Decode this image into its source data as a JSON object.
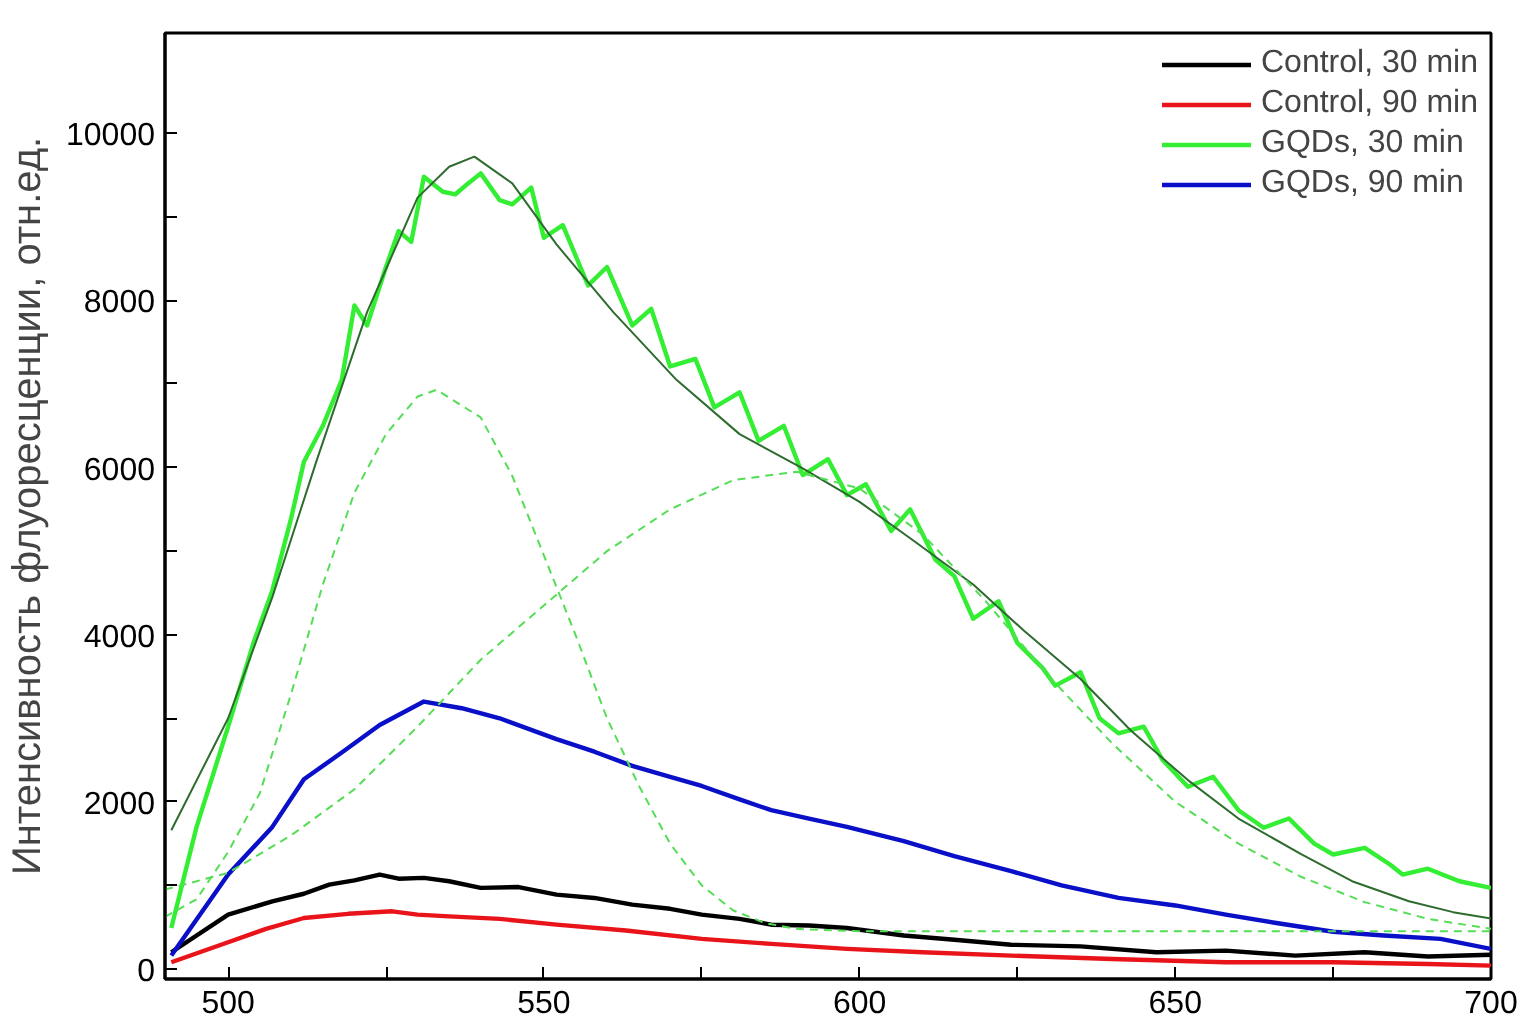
{
  "chart_data": {
    "type": "line",
    "ylabel": "Интенсивность флуоресценции, отн.ед.",
    "xlim": [
      490,
      700
    ],
    "ylim": [
      -120,
      11200
    ],
    "xticks": [
      500,
      {
        "value": 525,
        "label": null
      },
      550,
      {
        "value": 575,
        "label": null
      },
      600,
      {
        "value": 625,
        "label": null
      },
      650,
      {
        "value": 675,
        "label": null
      },
      700
    ],
    "yticks": [
      0,
      {
        "value": 1000,
        "label": null
      },
      2000,
      {
        "value": 3000,
        "label": null
      },
      4000,
      {
        "value": 5000,
        "label": null
      },
      6000,
      {
        "value": 7000,
        "label": null
      },
      8000,
      {
        "value": 9000,
        "label": null
      },
      10000
    ],
    "grid": false,
    "legend": "top right",
    "line_style": "solid",
    "marker": "none",
    "series": [
      {
        "name": "Control, 30 min",
        "color": "#000000",
        "x": [
          491,
          500,
          507,
          512,
          516,
          520,
          524,
          527,
          531,
          535,
          540,
          546,
          552,
          558,
          564,
          570,
          575,
          581,
          586,
          592,
          598,
          607,
          615,
          624,
          635,
          647,
          658,
          669,
          680,
          690,
          700
        ],
        "values": [
          200,
          650,
          810,
          900,
          1010,
          1060,
          1130,
          1080,
          1090,
          1050,
          970,
          980,
          890,
          850,
          770,
          720,
          650,
          600,
          530,
          520,
          490,
          400,
          350,
          290,
          270,
          200,
          220,
          160,
          200,
          150,
          170
        ]
      },
      {
        "name": "Control, 90 min",
        "color": "#e8141a",
        "x": [
          491,
          500,
          506,
          512,
          519,
          526,
          530,
          535,
          543,
          552,
          563,
          575,
          586,
          598,
          610,
          624,
          640,
          658,
          675,
          690,
          700
        ],
        "values": [
          80,
          320,
          480,
          610,
          660,
          690,
          650,
          630,
          600,
          530,
          460,
          360,
          300,
          240,
          200,
          160,
          120,
          80,
          80,
          60,
          40
        ]
      },
      {
        "name": "GQDs, 30 min",
        "color": "#33ee33",
        "x": [
          491,
          495,
          500,
          504,
          507,
          510,
          512,
          515,
          518,
          520,
          522,
          525,
          527,
          529,
          531,
          534,
          536,
          538,
          540,
          543,
          545,
          548,
          550,
          553,
          557,
          560,
          564,
          567,
          570,
          574,
          577,
          581,
          584,
          588,
          591,
          595,
          598,
          601,
          605,
          608,
          612,
          615,
          618,
          622,
          625,
          629,
          631,
          635,
          638,
          641,
          645,
          648,
          652,
          656,
          660,
          664,
          668,
          672,
          675,
          680,
          684,
          686,
          690,
          695,
          700
        ],
        "values": [
          490,
          1700,
          2900,
          3900,
          4530,
          5400,
          6070,
          6500,
          7050,
          7940,
          7700,
          8400,
          8830,
          8700,
          9480,
          9300,
          9270,
          9400,
          9520,
          9200,
          9150,
          9350,
          8750,
          8900,
          8180,
          8400,
          7700,
          7900,
          7210,
          7300,
          6720,
          6900,
          6320,
          6500,
          5910,
          6100,
          5670,
          5800,
          5240,
          5500,
          4900,
          4700,
          4190,
          4400,
          3900,
          3600,
          3390,
          3550,
          3000,
          2820,
          2900,
          2500,
          2180,
          2300,
          1900,
          1690,
          1800,
          1500,
          1370,
          1450,
          1250,
          1130,
          1200,
          1050,
          970
        ]
      },
      {
        "name": "GQDs, 90 min",
        "color": "#0a10c8",
        "x": [
          491,
          500,
          507,
          512,
          518,
          524,
          531,
          537,
          543,
          552,
          558,
          564,
          570,
          575,
          581,
          586,
          592,
          598,
          607,
          615,
          624,
          632,
          641,
          650,
          658,
          666,
          675,
          683,
          692,
          700
        ],
        "values": [
          160,
          1130,
          1700,
          2270,
          2590,
          2920,
          3200,
          3120,
          3000,
          2750,
          2600,
          2430,
          2300,
          2190,
          2030,
          1900,
          1800,
          1700,
          1530,
          1350,
          1170,
          1000,
          850,
          760,
          650,
          550,
          445,
          400,
          360,
          240
        ]
      },
      {
        "color": "#2e6b2e",
        "x": [
          491,
          500,
          507,
          514,
          522,
          530,
          535,
          539,
          545,
          552,
          561,
          571,
          581,
          591,
          600,
          609,
          618,
          626,
          635,
          643,
          652,
          660,
          670,
          678,
          687,
          694,
          700
        ],
        "values": [
          1660,
          3000,
          4450,
          6080,
          7860,
          9230,
          9600,
          9720,
          9400,
          8670,
          7860,
          7050,
          6400,
          5990,
          5590,
          5100,
          4600,
          4050,
          3470,
          2850,
          2260,
          1800,
          1370,
          1050,
          810,
          680,
          605
        ]
      },
      {
        "color": "#55dd55",
        "line_style": "dashed",
        "x": [
          490,
          495,
          500,
          505,
          510,
          515,
          520,
          525,
          530,
          533,
          540,
          545,
          550,
          555,
          560,
          565,
          570,
          575,
          580,
          585,
          590,
          600,
          650,
          700
        ],
        "values": [
          624,
          834,
          1400,
          2100,
          3300,
          4600,
          5700,
          6400,
          6850,
          6930,
          6600,
          5900,
          4950,
          4000,
          3000,
          2200,
          1500,
          1000,
          700,
          550,
          480,
          450,
          450,
          450
        ]
      },
      {
        "color": "#55dd55",
        "line_style": "dashed",
        "x": [
          490,
          500,
          510,
          520,
          530,
          540,
          550,
          560,
          570,
          580,
          590,
          600,
          610,
          620,
          630,
          640,
          650,
          660,
          670,
          680,
          690,
          700
        ],
        "values": [
          950,
          1150,
          1600,
          2150,
          2900,
          3700,
          4350,
          5000,
          5500,
          5850,
          5950,
          5750,
          5200,
          4400,
          3500,
          2700,
          2000,
          1500,
          1100,
          800,
          600,
          480
        ]
      }
    ]
  }
}
